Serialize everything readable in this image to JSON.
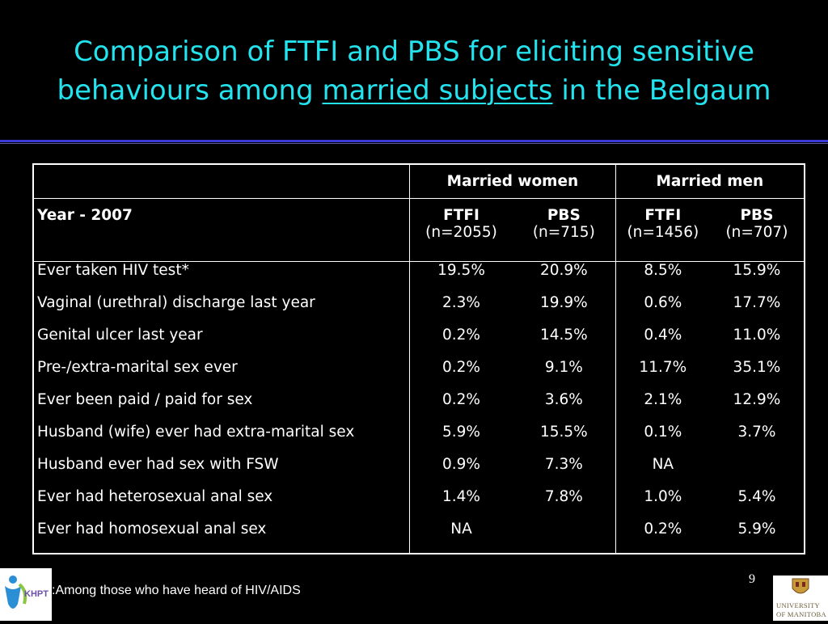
{
  "title": {
    "line1": "Comparison of FTFI and PBS for eliciting sensitive",
    "line2_pre": "behaviours among",
    "line2_underlined": "married subjects",
    "line2_post": "in the Belgaum"
  },
  "table": {
    "group_headers": [
      "Married women",
      "Married men"
    ],
    "year_label": "Year - 2007",
    "sub_headers": [
      {
        "method": "FTFI",
        "n": "(n=2055)"
      },
      {
        "method": "PBS",
        "n": "(n=715)"
      },
      {
        "method": "FTFI",
        "n": "(n=1456)"
      },
      {
        "method": "PBS",
        "n": "(n=707)"
      }
    ],
    "rows": [
      {
        "label": "Ever taken HIV test*",
        "values": [
          "19.5%",
          "20.9%",
          "8.5%",
          "15.9%"
        ]
      },
      {
        "label": "Vaginal (urethral) discharge last year",
        "values": [
          "2.3%",
          "19.9%",
          "0.6%",
          "17.7%"
        ]
      },
      {
        "label": "Genital ulcer last year",
        "values": [
          "0.2%",
          "14.5%",
          "0.4%",
          "11.0%"
        ]
      },
      {
        "label": "Pre-/extra-marital sex ever",
        "values": [
          "0.2%",
          "9.1%",
          "11.7%",
          "35.1%"
        ]
      },
      {
        "label": "Ever been paid / paid for sex",
        "values": [
          "0.2%",
          "3.6%",
          "2.1%",
          "12.9%"
        ]
      },
      {
        "label": "Husband (wife) ever had extra-marital sex",
        "values": [
          "5.9%",
          "15.5%",
          "0.1%",
          "3.7%"
        ]
      },
      {
        "label": "Husband ever had sex with FSW",
        "values": [
          "0.9%",
          "7.3%",
          "NA",
          ""
        ]
      },
      {
        "label": "Ever had heterosexual anal sex",
        "values": [
          "1.4%",
          "7.8%",
          "1.0%",
          "5.4%"
        ]
      },
      {
        "label": "Ever had homosexual anal sex",
        "values": [
          "NA",
          "",
          "0.2%",
          "5.9%"
        ]
      }
    ]
  },
  "footnote": "Among those who have heard of HIV/AIDS",
  "page_number": "9",
  "logos": {
    "left_text": "KHPT",
    "right_line1": "UNIVERSITY",
    "right_line2": "OF MANITOBA"
  },
  "colors": {
    "background": "#000000",
    "title": "#22e3ee",
    "rule": "#3a3ad8",
    "text": "#ffffff"
  }
}
